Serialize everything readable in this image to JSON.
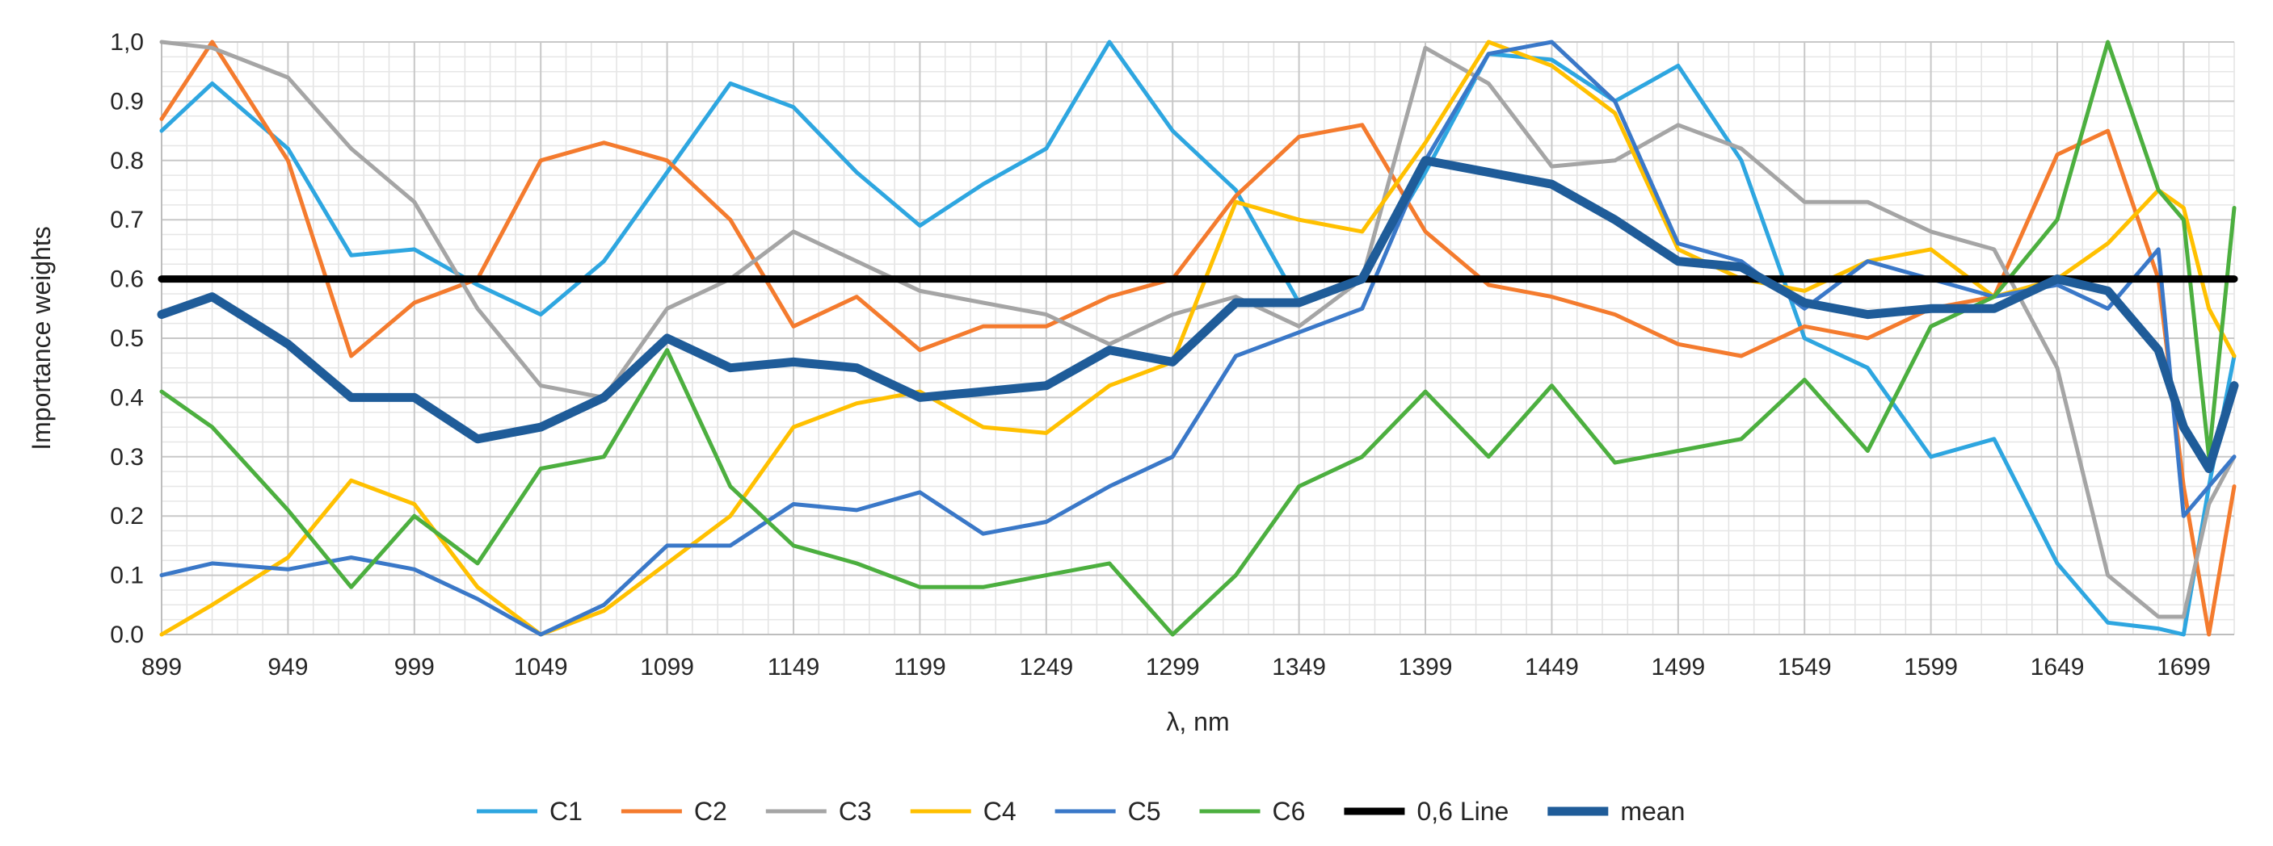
{
  "chart_data": {
    "type": "line",
    "xlabel": "λ, nm",
    "ylabel": "Importance weights",
    "xlim": [
      899,
      1719
    ],
    "ylim": [
      0,
      1
    ],
    "x_ticks": [
      "899",
      "949",
      "999",
      "1049",
      "1099",
      "1149",
      "1199",
      "1249",
      "1299",
      "1349",
      "1399",
      "1449",
      "1499",
      "1549",
      "1599",
      "1649",
      "1699"
    ],
    "y_ticks": [
      "0.0",
      "0.1",
      "0.2",
      "0.3",
      "0.4",
      "0.5",
      "0.6",
      "0.7",
      "0.8",
      "0.9",
      "1,0"
    ],
    "grid": true,
    "legend_position": "bottom",
    "x": [
      899,
      919,
      949,
      974,
      999,
      1024,
      1049,
      1074,
      1099,
      1124,
      1149,
      1174,
      1199,
      1224,
      1249,
      1274,
      1299,
      1324,
      1349,
      1374,
      1399,
      1424,
      1449,
      1474,
      1499,
      1524,
      1549,
      1574,
      1599,
      1624,
      1649,
      1669,
      1689,
      1699,
      1709,
      1719
    ],
    "series": [
      {
        "name": "C1",
        "color": "#2ea6e0",
        "width": 5,
        "values": [
          0.85,
          0.93,
          0.82,
          0.64,
          0.65,
          0.59,
          0.54,
          0.63,
          0.78,
          0.93,
          0.89,
          0.78,
          0.69,
          0.76,
          0.82,
          1.0,
          0.85,
          0.75,
          0.56,
          0.6,
          0.78,
          0.98,
          0.97,
          0.9,
          0.96,
          0.8,
          0.5,
          0.45,
          0.3,
          0.33,
          0.12,
          0.02,
          0.01,
          0.0,
          0.25,
          0.47
        ]
      },
      {
        "name": "C2",
        "color": "#f47b2e",
        "width": 5,
        "values": [
          0.87,
          1.0,
          0.8,
          0.47,
          0.56,
          0.6,
          0.8,
          0.83,
          0.8,
          0.7,
          0.52,
          0.57,
          0.48,
          0.52,
          0.52,
          0.57,
          0.6,
          0.74,
          0.84,
          0.86,
          0.68,
          0.59,
          0.57,
          0.54,
          0.49,
          0.47,
          0.52,
          0.5,
          0.55,
          0.57,
          0.81,
          0.85,
          0.6,
          0.25,
          0.0,
          0.25
        ]
      },
      {
        "name": "C3",
        "color": "#a5a5a5",
        "width": 5,
        "values": [
          1.0,
          0.99,
          0.94,
          0.82,
          0.73,
          0.55,
          0.42,
          0.4,
          0.55,
          0.6,
          0.68,
          0.63,
          0.58,
          0.56,
          0.54,
          0.49,
          0.54,
          0.57,
          0.52,
          0.6,
          0.99,
          0.93,
          0.79,
          0.8,
          0.86,
          0.82,
          0.73,
          0.73,
          0.68,
          0.65,
          0.45,
          0.1,
          0.03,
          0.03,
          0.22,
          0.3
        ]
      },
      {
        "name": "C4",
        "color": "#ffc000",
        "width": 5,
        "values": [
          0.0,
          0.05,
          0.13,
          0.26,
          0.22,
          0.08,
          0.0,
          0.04,
          0.12,
          0.2,
          0.35,
          0.39,
          0.41,
          0.35,
          0.34,
          0.42,
          0.46,
          0.73,
          0.7,
          0.68,
          0.83,
          1.0,
          0.96,
          0.88,
          0.65,
          0.6,
          0.58,
          0.63,
          0.65,
          0.57,
          0.6,
          0.66,
          0.75,
          0.72,
          0.55,
          0.47
        ]
      },
      {
        "name": "C5",
        "color": "#3a78c8",
        "width": 5,
        "values": [
          0.1,
          0.12,
          0.11,
          0.13,
          0.11,
          0.06,
          0.0,
          0.05,
          0.15,
          0.15,
          0.22,
          0.21,
          0.24,
          0.17,
          0.19,
          0.25,
          0.3,
          0.47,
          0.51,
          0.55,
          0.8,
          0.98,
          1.0,
          0.9,
          0.66,
          0.63,
          0.55,
          0.63,
          0.6,
          0.57,
          0.59,
          0.55,
          0.65,
          0.2,
          0.25,
          0.3
        ]
      },
      {
        "name": "C6",
        "color": "#4caf3f",
        "width": 5,
        "values": [
          0.41,
          0.35,
          0.21,
          0.08,
          0.2,
          0.12,
          0.28,
          0.3,
          0.48,
          0.25,
          0.15,
          0.12,
          0.08,
          0.08,
          0.1,
          0.12,
          0.0,
          0.1,
          0.25,
          0.3,
          0.41,
          0.3,
          0.42,
          0.29,
          0.31,
          0.33,
          0.43,
          0.31,
          0.52,
          0.57,
          0.7,
          1.0,
          0.75,
          0.7,
          0.3,
          0.72
        ]
      },
      {
        "name": "0,6 Line",
        "color": "#000000",
        "width": 9,
        "values": [
          0.6,
          0.6,
          0.6,
          0.6,
          0.6,
          0.6,
          0.6,
          0.6,
          0.6,
          0.6,
          0.6,
          0.6,
          0.6,
          0.6,
          0.6,
          0.6,
          0.6,
          0.6,
          0.6,
          0.6,
          0.6,
          0.6,
          0.6,
          0.6,
          0.6,
          0.6,
          0.6,
          0.6,
          0.6,
          0.6,
          0.6,
          0.6,
          0.6,
          0.6,
          0.6,
          0.6
        ]
      },
      {
        "name": "mean",
        "color": "#1f5c99",
        "width": 11,
        "values": [
          0.54,
          0.57,
          0.49,
          0.4,
          0.4,
          0.33,
          0.35,
          0.4,
          0.5,
          0.45,
          0.46,
          0.45,
          0.4,
          0.41,
          0.42,
          0.48,
          0.46,
          0.56,
          0.56,
          0.6,
          0.8,
          0.78,
          0.76,
          0.7,
          0.63,
          0.62,
          0.56,
          0.54,
          0.55,
          0.55,
          0.6,
          0.58,
          0.48,
          0.35,
          0.28,
          0.42
        ]
      }
    ]
  }
}
